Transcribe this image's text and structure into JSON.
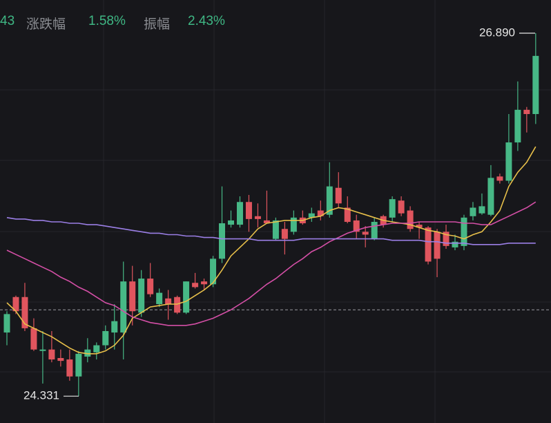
{
  "chart_data": {
    "type": "candlestick",
    "header": [
      {
        "value": "43"
      },
      {
        "label": "涨跌幅",
        "value": "1.58%"
      },
      {
        "label": "振幅",
        "value": "2.43%"
      }
    ],
    "ylim": [
      24.142,
      27.124
    ],
    "up_color": "#47b886",
    "down_color": "#e0555e",
    "ohlc": {
      "open": [
        24.78,
        25.03,
        25.03,
        24.81,
        24.65,
        24.66,
        24.6,
        24.59,
        24.47,
        24.61,
        24.64,
        24.69,
        24.78,
        24.78,
        25.14,
        24.92,
        25.16,
        24.98,
        25.02,
        25.03,
        24.92,
        25.13,
        25.14,
        25.12,
        25.3,
        25.54,
        25.54,
        25.7,
        25.6,
        25.57,
        25.44,
        25.51,
        25.49,
        25.59,
        25.59,
        25.64,
        25.61,
        25.8,
        25.66,
        25.57,
        25.49,
        25.44,
        25.6,
        25.59,
        25.71,
        25.64,
        25.54,
        25.52,
        25.49,
        25.49,
        25.38,
        25.39,
        25.6,
        25.62,
        25.61,
        25.88,
        25.85,
        26.12,
        26.35,
        26.32
      ],
      "high": [
        24.93,
        25.04,
        25.13,
        24.88,
        24.79,
        24.79,
        24.66,
        24.66,
        24.65,
        24.74,
        24.71,
        24.83,
        24.98,
        25.28,
        25.25,
        25.22,
        25.27,
        25.09,
        25.08,
        25.04,
        25.14,
        25.2,
        25.16,
        25.32,
        25.81,
        25.64,
        25.74,
        25.75,
        25.69,
        25.78,
        25.59,
        25.56,
        25.64,
        25.64,
        25.66,
        25.71,
        25.98,
        25.91,
        25.74,
        25.61,
        25.53,
        25.59,
        25.61,
        25.74,
        25.74,
        25.67,
        25.56,
        25.53,
        25.51,
        25.54,
        25.47,
        25.61,
        25.7,
        25.76,
        25.96,
        25.9,
        26.32,
        26.55,
        26.37,
        26.89
      ],
      "low": [
        24.69,
        24.91,
        24.79,
        24.65,
        24.42,
        24.57,
        24.54,
        24.44,
        24.331,
        24.57,
        24.59,
        24.66,
        24.66,
        24.59,
        24.83,
        24.89,
        25.03,
        24.96,
        24.87,
        24.91,
        24.91,
        25.09,
        25.08,
        25.1,
        25.27,
        25.52,
        25.52,
        25.49,
        25.52,
        25.55,
        25.43,
        25.33,
        25.47,
        25.54,
        25.56,
        25.57,
        25.59,
        25.66,
        25.55,
        25.44,
        25.38,
        25.43,
        25.52,
        25.56,
        25.6,
        25.49,
        25.44,
        25.26,
        25.17,
        25.37,
        25.36,
        25.36,
        25.57,
        25.61,
        25.6,
        25.83,
        25.83,
        26.06,
        26.19,
        26.25
      ],
      "close": [
        24.91,
        24.93,
        24.81,
        24.66,
        24.66,
        24.59,
        24.58,
        24.47,
        24.63,
        24.66,
        24.69,
        24.79,
        24.86,
        25.14,
        24.93,
        25.16,
        25.05,
        25.06,
        24.98,
        24.92,
        25.14,
        25.1,
        25.12,
        25.3,
        25.55,
        25.57,
        25.7,
        25.58,
        25.58,
        25.55,
        25.57,
        25.44,
        25.59,
        25.55,
        25.62,
        25.6,
        25.81,
        25.69,
        25.56,
        25.49,
        25.47,
        25.56,
        25.54,
        25.72,
        25.62,
        25.51,
        25.52,
        25.28,
        25.3,
        25.39,
        25.42,
        25.59,
        25.66,
        25.67,
        25.87,
        25.85,
        26.12,
        26.35,
        26.32,
        26.73
      ]
    },
    "lines": [
      {
        "color": "#e8c04a",
        "values": [
          24.99,
          24.93,
          24.84,
          24.81,
          24.78,
          24.75,
          24.71,
          24.67,
          24.64,
          24.63,
          24.63,
          24.65,
          24.69,
          24.76,
          24.88,
          24.92,
          24.96,
          24.97,
          24.98,
          24.98,
          25.0,
          25.04,
          25.08,
          25.13,
          25.22,
          25.32,
          25.38,
          25.44,
          25.51,
          25.55,
          25.56,
          25.57,
          25.57,
          25.57,
          25.59,
          25.6,
          25.64,
          25.66,
          25.65,
          25.63,
          25.61,
          25.59,
          25.57,
          25.56,
          25.55,
          25.54,
          25.52,
          25.5,
          25.49,
          25.47,
          25.46,
          25.44,
          25.47,
          25.49,
          25.56,
          25.64,
          25.81,
          25.91,
          25.98,
          26.09
        ]
      },
      {
        "color": "#d44fa6",
        "values": [
          25.36,
          25.33,
          25.3,
          25.27,
          25.24,
          25.21,
          25.17,
          25.14,
          25.1,
          25.07,
          25.03,
          24.99,
          24.97,
          24.93,
          24.89,
          24.87,
          24.85,
          24.84,
          24.83,
          24.83,
          24.83,
          24.84,
          24.86,
          24.88,
          24.91,
          24.94,
          24.98,
          25.02,
          25.07,
          25.12,
          25.16,
          25.21,
          25.26,
          25.3,
          25.35,
          25.38,
          25.42,
          25.45,
          25.48,
          25.5,
          25.52,
          25.53,
          25.54,
          25.55,
          25.55,
          25.55,
          25.56,
          25.56,
          25.56,
          25.56,
          25.56,
          25.55,
          25.55,
          25.54,
          25.54,
          25.57,
          25.6,
          25.63,
          25.66,
          25.7
        ]
      },
      {
        "color": "#9b7fe6",
        "values": [
          25.59,
          25.58,
          25.58,
          25.57,
          25.57,
          25.56,
          25.56,
          25.55,
          25.55,
          25.54,
          25.54,
          25.53,
          25.52,
          25.51,
          25.5,
          25.49,
          25.48,
          25.48,
          25.47,
          25.47,
          25.46,
          25.46,
          25.45,
          25.45,
          25.44,
          25.44,
          25.44,
          25.44,
          25.43,
          25.43,
          25.43,
          25.43,
          25.43,
          25.44,
          25.44,
          25.44,
          25.44,
          25.44,
          25.44,
          25.44,
          25.44,
          25.44,
          25.44,
          25.43,
          25.43,
          25.43,
          25.43,
          25.42,
          25.42,
          25.41,
          25.41,
          25.41,
          25.4,
          25.4,
          25.4,
          25.4,
          25.41,
          25.41,
          25.41,
          25.41
        ]
      }
    ],
    "price_line": 24.94,
    "high": {
      "value": 26.89,
      "label": "26.890"
    },
    "low": {
      "value": 24.331,
      "label": "24.331"
    }
  }
}
